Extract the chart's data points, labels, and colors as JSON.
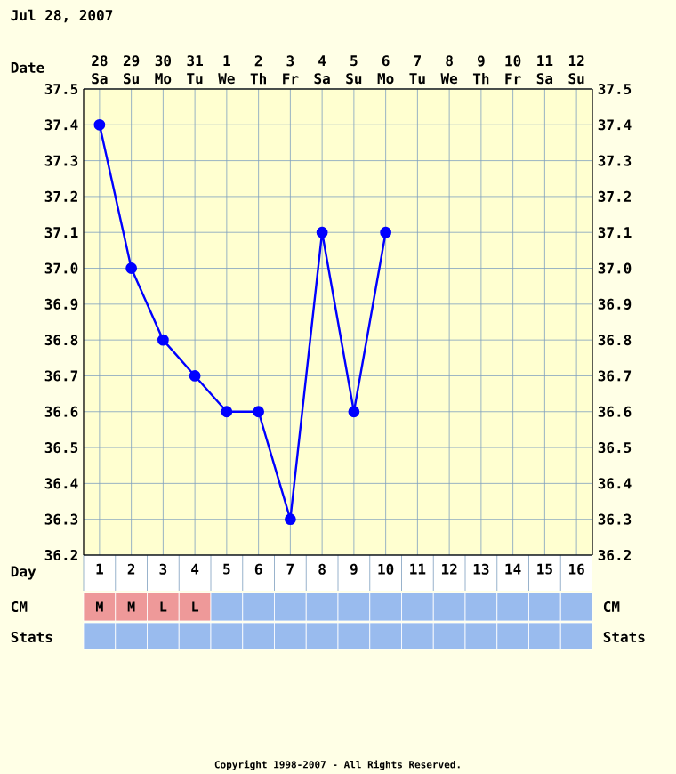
{
  "chart_data": {
    "type": "line",
    "title": "Jul 28, 2007",
    "xlabel": "Date",
    "x2label": "Day",
    "categories": [
      "28 Sa",
      "29 Su",
      "30 Mo",
      "31 Tu",
      "1 We",
      "2 Th",
      "3 Fr",
      "4 Sa",
      "5 Su",
      "6 Mo",
      "7 Tu",
      "8 We",
      "9 Th",
      "10 Fr",
      "11 Sa",
      "12 Su"
    ],
    "values": [
      37.4,
      37.0,
      36.8,
      36.7,
      36.6,
      36.6,
      36.3,
      37.1,
      36.6,
      37.1,
      null,
      null,
      null,
      null,
      null,
      null
    ],
    "color": "#0000ff",
    "marker": "circle",
    "line_style": "solid",
    "grid": true,
    "x2lim": [
      0.5,
      16.5
    ],
    "x2ticks": [
      1,
      2,
      3,
      4,
      5,
      6,
      7,
      8,
      9,
      10,
      11,
      12,
      13,
      14,
      15,
      16
    ],
    "ylim": [
      36.2,
      37.5
    ],
    "yticks": [
      36.2,
      36.3,
      36.4,
      36.5,
      36.6,
      36.7,
      36.8,
      36.9,
      {
        "value": 37,
        "label": "37.0"
      },
      37.1,
      37.2,
      37.3,
      37.4,
      37.5
    ],
    "y2lim": [
      36.2,
      37.5
    ],
    "y2ticks": [
      36.2,
      36.3,
      36.4,
      36.5,
      36.6,
      36.7,
      36.8,
      36.9,
      {
        "value": 37,
        "label": "37.0"
      },
      37.1,
      37.2,
      37.3,
      37.4,
      37.5
    ],
    "annotations": [
      "CM",
      "Stats",
      "Copyright 1998-2007 - All Rights Reserved.",
      "M",
      "M",
      "L",
      "L"
    ]
  }
}
